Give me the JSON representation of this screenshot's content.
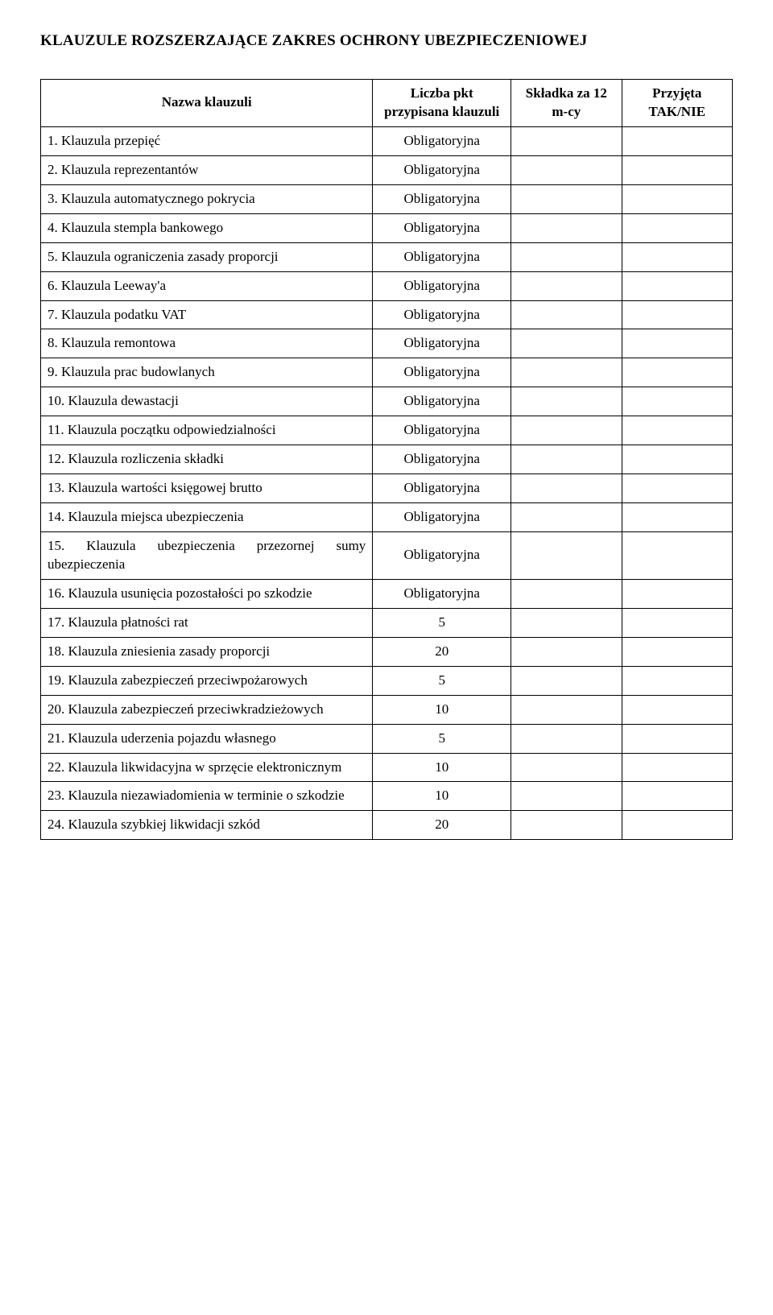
{
  "title": "KLAUZULE ROZSZERZAJĄCE ZAKRES OCHRONY UBEZPIECZENIOWEJ",
  "headers": {
    "name": "Nazwa klauzuli",
    "points": "Liczba pkt przypisana klauzuli",
    "premium": "Składka za 12 m-cy",
    "accepted": "Przyjęta TAK/NIE"
  },
  "rows": [
    {
      "name": "1. Klauzula przepięć",
      "pts": "Obligatoryjna"
    },
    {
      "name": "2. Klauzula reprezentantów",
      "pts": "Obligatoryjna"
    },
    {
      "name": "3. Klauzula automatycznego pokrycia",
      "pts": "Obligatoryjna"
    },
    {
      "name": "4. Klauzula stempla bankowego",
      "pts": "Obligatoryjna"
    },
    {
      "name": "5. Klauzula ograniczenia zasady proporcji",
      "pts": "Obligatoryjna"
    },
    {
      "name": "6. Klauzula Leeway'a",
      "pts": "Obligatoryjna"
    },
    {
      "name": "7. Klauzula podatku VAT",
      "pts": "Obligatoryjna"
    },
    {
      "name": "8. Klauzula remontowa",
      "pts": "Obligatoryjna"
    },
    {
      "name": "9. Klauzula prac budowlanych",
      "pts": "Obligatoryjna"
    },
    {
      "name": "10. Klauzula dewastacji",
      "pts": "Obligatoryjna"
    },
    {
      "name": "11. Klauzula początku odpowiedzialności",
      "pts": "Obligatoryjna"
    },
    {
      "name": "12. Klauzula rozliczenia składki",
      "pts": "Obligatoryjna"
    },
    {
      "name": "13. Klauzula wartości księgowej brutto",
      "pts": "Obligatoryjna"
    },
    {
      "name": "14. Klauzula miejsca ubezpieczenia",
      "pts": "Obligatoryjna"
    },
    {
      "name": "15. Klauzula ubezpieczenia przezornej sumy ubezpieczenia",
      "pts": "Obligatoryjna",
      "justify": true
    },
    {
      "name": "16. Klauzula usunięcia pozostałości po szkodzie",
      "pts": "Obligatoryjna",
      "justify": true
    },
    {
      "name": "17. Klauzula płatności rat",
      "pts": "5"
    },
    {
      "name": "18. Klauzula zniesienia zasady proporcji",
      "pts": "20"
    },
    {
      "name": "19. Klauzula zabezpieczeń przeciwpożarowych",
      "pts": "5"
    },
    {
      "name": "20. Klauzula zabezpieczeń przeciwkradzieżowych",
      "pts": "10"
    },
    {
      "name": "21. Klauzula uderzenia pojazdu własnego",
      "pts": "5"
    },
    {
      "name": "22. Klauzula likwidacyjna w sprzęcie elektronicznym",
      "pts": "10"
    },
    {
      "name": "23. Klauzula niezawiadomienia w terminie o szkodzie",
      "pts": "10"
    },
    {
      "name": "24. Klauzula szybkiej likwidacji szkód",
      "pts": "20"
    }
  ]
}
